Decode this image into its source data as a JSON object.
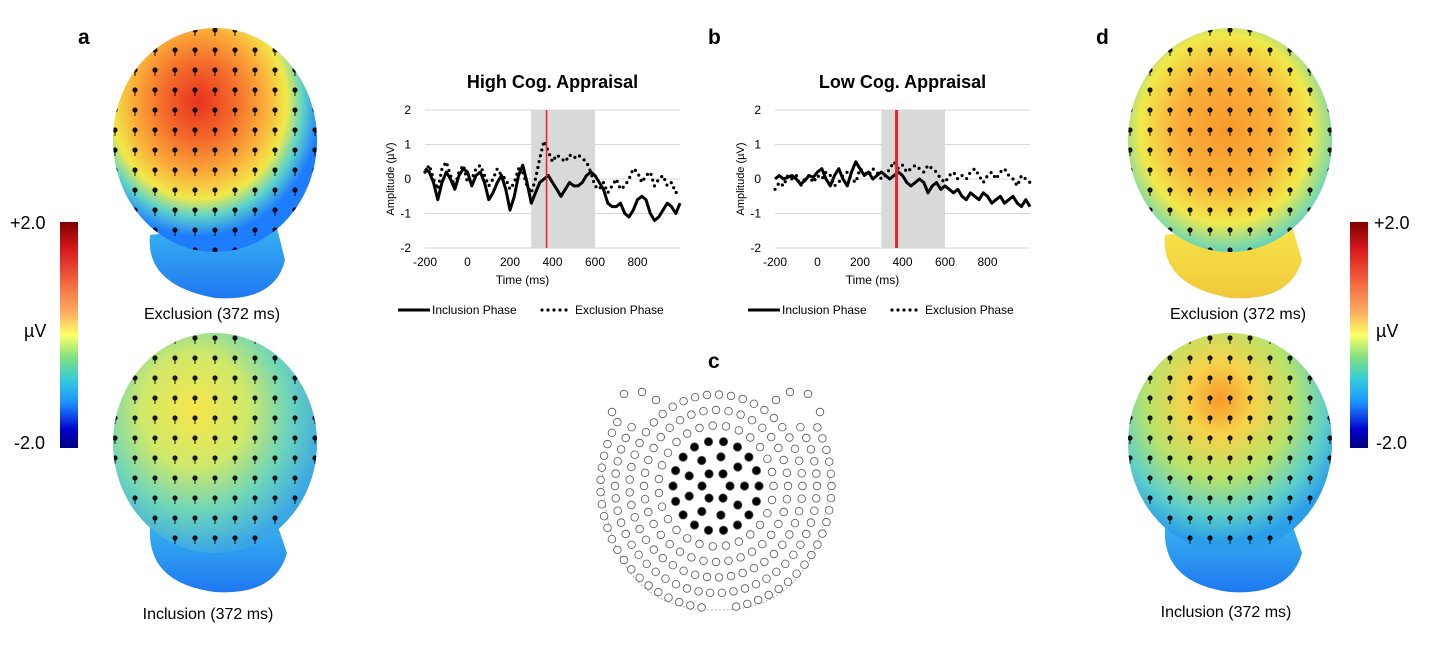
{
  "panels": {
    "a": "a",
    "b": "b",
    "c": "c",
    "d": "d"
  },
  "topomaps": {
    "left": {
      "top_caption": "Exclusion (372 ms)",
      "bottom_caption": "Inclusion (372 ms)"
    },
    "right": {
      "top_caption": "Exclusion (372 ms)",
      "bottom_caption": "Inclusion (372 ms)"
    }
  },
  "colorbar": {
    "max_label": "+2.0",
    "unit_label": "µV",
    "min_label": "-2.0",
    "colors": [
      "#7f0000",
      "#d7191c",
      "#f46d43",
      "#fdae61",
      "#ffff66",
      "#7fe07f",
      "#33ccdd",
      "#1e90ff",
      "#0000cc",
      "#000080"
    ]
  },
  "legend": {
    "inclusion": "Inclusion Phase",
    "exclusion": "Exclusion Phase"
  },
  "chart_data": [
    {
      "type": "line",
      "title": "High Cog. Appraisal",
      "xlabel": "Time (ms)",
      "ylabel": "Amplitude (µV)",
      "xlim": [
        -200,
        1000
      ],
      "ylim": [
        -2,
        2
      ],
      "x_ticks": [
        "-200",
        "0",
        "200",
        "400",
        "600",
        "800"
      ],
      "y_ticks": [
        "2",
        "1",
        "0",
        "-1",
        "-2"
      ],
      "shaded_window": [
        300,
        600
      ],
      "marker_ms": 372,
      "marker_color": "#e8262a",
      "series": [
        {
          "name": "Inclusion Phase",
          "style": "solid",
          "x": [
            -200,
            -180,
            -160,
            -140,
            -120,
            -100,
            -80,
            -60,
            -40,
            -20,
            0,
            20,
            40,
            60,
            80,
            100,
            120,
            140,
            160,
            180,
            200,
            220,
            240,
            260,
            280,
            300,
            320,
            340,
            360,
            380,
            400,
            420,
            440,
            460,
            480,
            500,
            520,
            540,
            560,
            580,
            600,
            620,
            640,
            660,
            680,
            700,
            720,
            740,
            760,
            780,
            800,
            820,
            840,
            860,
            880,
            900,
            920,
            940,
            960,
            980,
            1000
          ],
          "y": [
            0.3,
            0.2,
            -0.1,
            -0.6,
            -0.1,
            0.2,
            0.0,
            -0.3,
            0.1,
            0.3,
            0.2,
            -0.2,
            0.1,
            0.2,
            -0.1,
            -0.6,
            -0.4,
            -0.1,
            0.1,
            -0.3,
            -0.9,
            -0.5,
            0.1,
            0.4,
            -0.1,
            -0.7,
            -0.4,
            -0.1,
            0.0,
            0.1,
            -0.1,
            -0.3,
            -0.5,
            -0.3,
            -0.1,
            -0.2,
            -0.2,
            -0.1,
            0.1,
            0.2,
            0.1,
            -0.1,
            -0.3,
            -0.7,
            -0.8,
            -0.8,
            -0.7,
            -1.0,
            -1.1,
            -0.9,
            -0.6,
            -0.5,
            -0.6,
            -1.0,
            -1.2,
            -1.1,
            -0.9,
            -0.7,
            -0.8,
            -1.0,
            -0.7
          ]
        },
        {
          "name": "Exclusion Phase",
          "style": "dotted",
          "x": [
            -200,
            -180,
            -160,
            -140,
            -120,
            -100,
            -80,
            -60,
            -40,
            -20,
            0,
            20,
            40,
            60,
            80,
            100,
            120,
            140,
            160,
            180,
            200,
            220,
            240,
            260,
            280,
            300,
            320,
            340,
            360,
            380,
            400,
            420,
            440,
            460,
            480,
            500,
            520,
            540,
            560,
            580,
            600,
            620,
            640,
            660,
            680,
            700,
            720,
            740,
            760,
            780,
            800,
            820,
            840,
            860,
            880,
            900,
            920,
            940,
            960,
            980,
            1000
          ],
          "y": [
            0.2,
            0.4,
            0.0,
            -0.3,
            0.3,
            0.5,
            0.1,
            -0.2,
            0.2,
            0.4,
            -0.1,
            0.0,
            0.3,
            0.4,
            0.1,
            -0.2,
            0.0,
            0.3,
            0.1,
            0.0,
            -0.3,
            -0.1,
            0.3,
            0.2,
            -0.2,
            -0.4,
            0.0,
            0.6,
            1.1,
            0.8,
            0.5,
            0.7,
            0.6,
            0.5,
            0.7,
            0.6,
            0.7,
            0.6,
            0.5,
            0.2,
            -0.2,
            -0.3,
            -0.1,
            -0.4,
            -0.2,
            0.0,
            -0.3,
            -0.2,
            0.0,
            0.3,
            0.2,
            -0.1,
            0.1,
            0.2,
            -0.2,
            0.0,
            0.1,
            -0.2,
            -0.1,
            -0.4,
            -0.3
          ]
        }
      ]
    },
    {
      "type": "line",
      "title": "Low Cog. Appraisal",
      "xlabel": "Time (ms)",
      "ylabel": "Amplitude (µV)",
      "xlim": [
        -200,
        1000
      ],
      "ylim": [
        -2,
        2
      ],
      "x_ticks": [
        "-200",
        "0",
        "200",
        "400",
        "600",
        "800"
      ],
      "y_ticks": [
        "2",
        "1",
        "0",
        "-1",
        "-2"
      ],
      "shaded_window": [
        300,
        600
      ],
      "marker_ms": 372,
      "marker_color": "#e8262a",
      "series": [
        {
          "name": "Inclusion Phase",
          "style": "solid",
          "x": [
            -200,
            -180,
            -160,
            -140,
            -120,
            -100,
            -80,
            -60,
            -40,
            -20,
            0,
            20,
            40,
            60,
            80,
            100,
            120,
            140,
            160,
            180,
            200,
            220,
            240,
            260,
            280,
            300,
            320,
            340,
            360,
            380,
            400,
            420,
            440,
            460,
            480,
            500,
            520,
            540,
            560,
            580,
            600,
            620,
            640,
            660,
            680,
            700,
            720,
            740,
            760,
            780,
            800,
            820,
            840,
            860,
            880,
            900,
            920,
            940,
            960,
            980,
            1000
          ],
          "y": [
            0.0,
            0.1,
            0.0,
            0.05,
            0.1,
            0.0,
            -0.15,
            -0.05,
            0.1,
            0.05,
            0.2,
            0.3,
            0.0,
            -0.2,
            0.1,
            0.3,
            0.0,
            -0.2,
            0.2,
            0.5,
            0.3,
            0.1,
            0.2,
            0.0,
            0.1,
            0.2,
            0.1,
            0.0,
            0.1,
            0.2,
            0.1,
            -0.1,
            -0.2,
            -0.1,
            0.0,
            -0.1,
            -0.4,
            -0.2,
            -0.1,
            -0.3,
            -0.2,
            -0.3,
            -0.4,
            -0.3,
            -0.5,
            -0.6,
            -0.4,
            -0.5,
            -0.6,
            -0.4,
            -0.5,
            -0.7,
            -0.6,
            -0.5,
            -0.7,
            -0.6,
            -0.5,
            -0.7,
            -0.8,
            -0.6,
            -0.8
          ]
        },
        {
          "name": "Exclusion Phase",
          "style": "dotted",
          "x": [
            -200,
            -180,
            -160,
            -140,
            -120,
            -100,
            -80,
            -60,
            -40,
            -20,
            0,
            20,
            40,
            60,
            80,
            100,
            120,
            140,
            160,
            180,
            200,
            220,
            240,
            260,
            280,
            300,
            320,
            340,
            360,
            380,
            400,
            420,
            440,
            460,
            480,
            500,
            520,
            540,
            560,
            580,
            600,
            620,
            640,
            660,
            680,
            700,
            720,
            740,
            760,
            780,
            800,
            820,
            840,
            860,
            880,
            900,
            920,
            940,
            960,
            980,
            1000
          ],
          "y": [
            -0.3,
            -0.1,
            -0.2,
            0.1,
            0.0,
            0.1,
            -0.2,
            0.0,
            0.1,
            -0.1,
            0.1,
            0.0,
            0.2,
            0.1,
            -0.2,
            -0.1,
            0.1,
            0.2,
            0.0,
            -0.1,
            0.3,
            0.2,
            0.1,
            0.3,
            0.2,
            0.0,
            0.1,
            0.3,
            0.5,
            0.3,
            0.4,
            0.2,
            0.3,
            0.4,
            0.3,
            0.2,
            0.4,
            0.3,
            0.2,
            0.0,
            -0.1,
            0.1,
            0.2,
            0.0,
            0.1,
            0.0,
            0.2,
            0.3,
            0.1,
            -0.1,
            0.1,
            0.2,
            0.0,
            0.2,
            0.3,
            0.1,
            0.0,
            -0.2,
            0.1,
            0.0,
            -0.1
          ]
        }
      ]
    }
  ]
}
